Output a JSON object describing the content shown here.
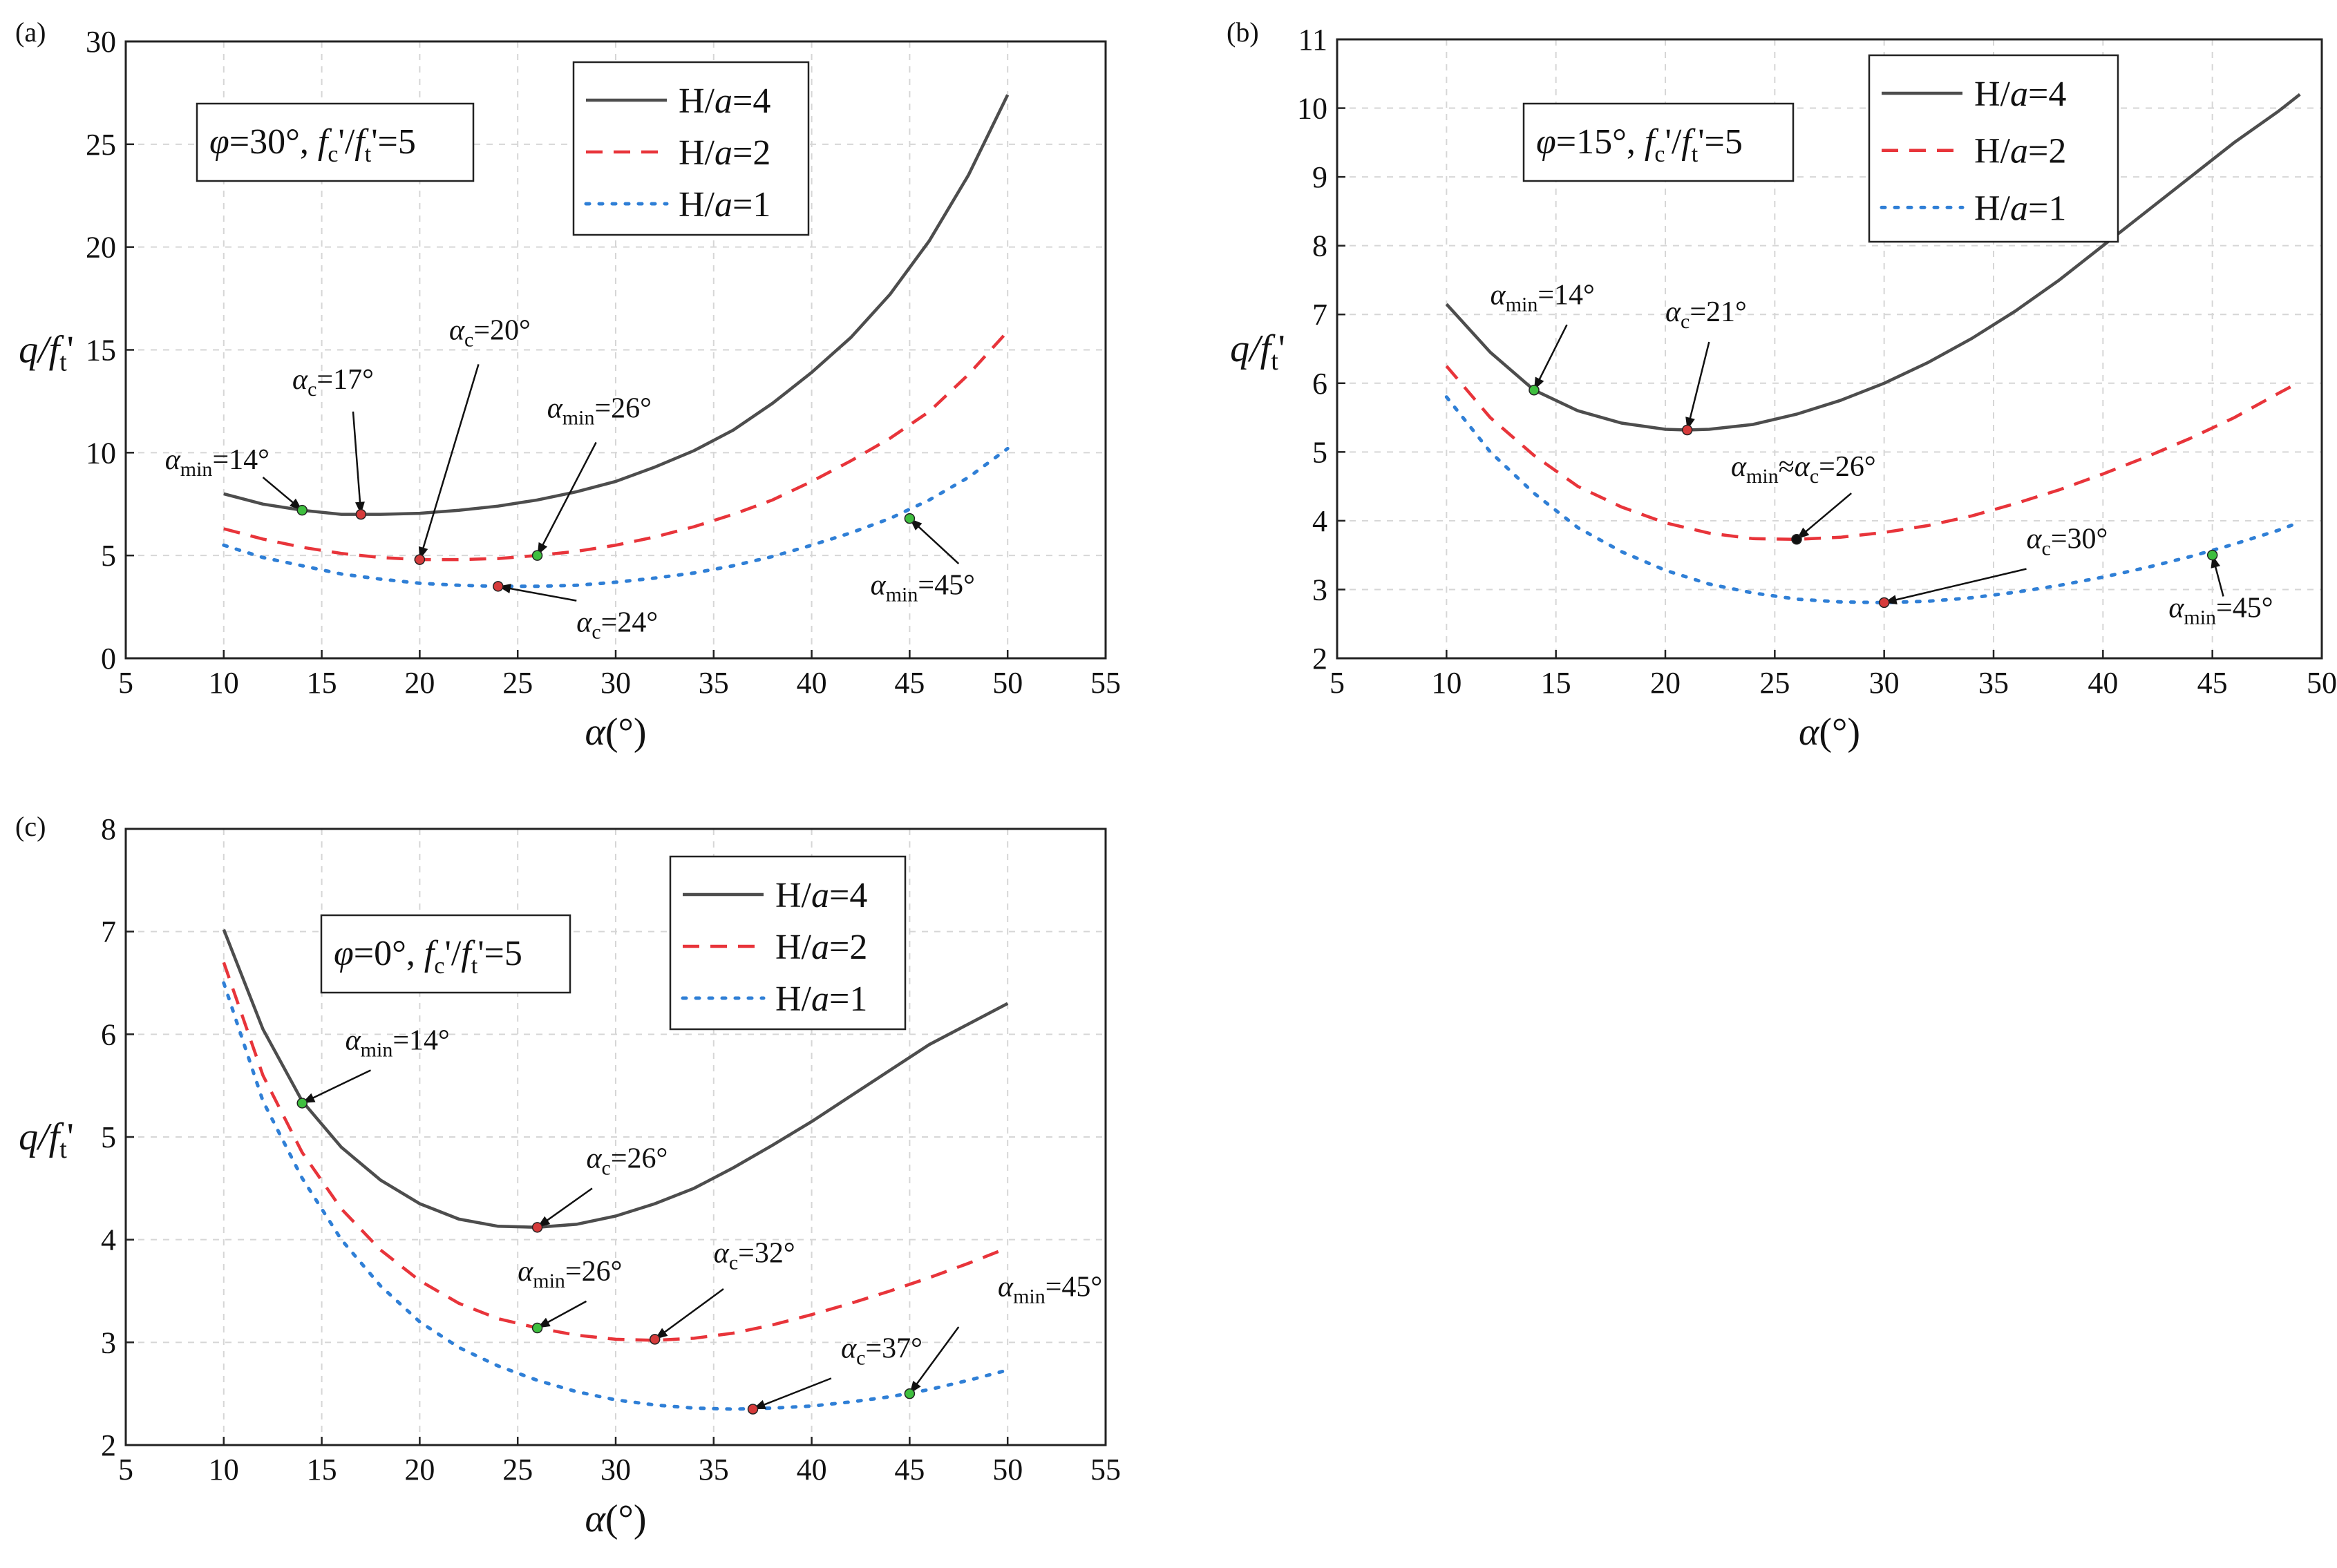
{
  "figure": {
    "colors": {
      "H4": "#4d4d4d",
      "H2": "#e8343a",
      "H1": "#2f7fd6",
      "min_marker": "#3fbf3f",
      "c_marker": "#d63b3b",
      "c_marker_black": "#111111"
    }
  },
  "chart_data": [
    {
      "type": "line",
      "panel_label": "(a)",
      "condition": "φ=30°, fc'/ft'=5",
      "condition_parts": {
        "phi": "φ",
        "phi_val": "=30°, ",
        "fc": "f",
        "fc_sub": "c",
        "fc_prime": "'/",
        "ft": "f",
        "ft_sub": "t",
        "ft_tail": "'=5"
      },
      "xlabel": "α(°)",
      "ylabel": "q/ft'",
      "xlim": [
        5,
        55
      ],
      "ylim": [
        0,
        30
      ],
      "xticks": [
        5,
        10,
        15,
        20,
        25,
        30,
        35,
        40,
        45,
        50,
        55
      ],
      "yticks": [
        0,
        5,
        10,
        15,
        20,
        25,
        30
      ],
      "legend": [
        "H/a=4",
        "H/a=2",
        "H/a=1"
      ],
      "series": [
        {
          "name": "H/a=4",
          "style": "solid",
          "x": [
            10,
            12,
            14,
            16,
            18,
            20,
            22,
            24,
            26,
            28,
            30,
            32,
            34,
            36,
            38,
            40,
            42,
            44,
            46,
            48,
            50
          ],
          "y": [
            8.0,
            7.5,
            7.2,
            7.0,
            7.0,
            7.05,
            7.2,
            7.4,
            7.7,
            8.1,
            8.6,
            9.3,
            10.1,
            11.1,
            12.4,
            13.9,
            15.6,
            17.7,
            20.3,
            23.5,
            27.4
          ]
        },
        {
          "name": "H/a=2",
          "style": "dashed",
          "x": [
            10,
            12,
            14,
            16,
            18,
            20,
            22,
            24,
            26,
            28,
            30,
            32,
            34,
            36,
            38,
            40,
            42,
            44,
            46,
            48,
            50
          ],
          "y": [
            6.3,
            5.8,
            5.4,
            5.1,
            4.9,
            4.8,
            4.8,
            4.85,
            5.0,
            5.2,
            5.5,
            5.9,
            6.4,
            7.0,
            7.7,
            8.6,
            9.6,
            10.7,
            12.0,
            13.8,
            15.9
          ]
        },
        {
          "name": "H/a=1",
          "style": "dotted",
          "x": [
            10,
            12,
            14,
            16,
            18,
            20,
            22,
            24,
            26,
            28,
            30,
            32,
            34,
            36,
            38,
            40,
            42,
            44,
            46,
            48,
            50
          ],
          "y": [
            5.5,
            4.9,
            4.5,
            4.1,
            3.85,
            3.65,
            3.55,
            3.5,
            3.5,
            3.55,
            3.7,
            3.9,
            4.15,
            4.5,
            4.95,
            5.5,
            6.1,
            6.8,
            7.7,
            8.8,
            10.2
          ]
        }
      ],
      "annotations": [
        {
          "sym": "α",
          "sub": "min",
          "rest": "=14°",
          "x": 14,
          "y": 7.2,
          "marker": "min",
          "tx": 7.0,
          "ty": 9.2,
          "ax": 12.0,
          "ay": 8.8
        },
        {
          "sym": "α",
          "sub": "c",
          "rest": "=17°",
          "x": 17,
          "y": 7.0,
          "marker": "c",
          "tx": 13.5,
          "ty": 13.1,
          "ax": 16.6,
          "ay": 12.0
        },
        {
          "sym": "α",
          "sub": "c",
          "rest": "=20°",
          "x": 20,
          "y": 4.8,
          "marker": "c",
          "tx": 21.5,
          "ty": 15.5,
          "ax": 23.0,
          "ay": 14.3
        },
        {
          "sym": "α",
          "sub": "min",
          "rest": "=26°",
          "x": 26,
          "y": 5.0,
          "marker": "min",
          "tx": 26.5,
          "ty": 11.7,
          "ax": 29.0,
          "ay": 10.5
        },
        {
          "sym": "α",
          "sub": "c",
          "rest": "=24°",
          "x": 24,
          "y": 3.5,
          "marker": "c",
          "tx": 28.0,
          "ty": 1.3,
          "ax": 28.0,
          "ay": 2.8
        },
        {
          "sym": "α",
          "sub": "min",
          "rest": "=45°",
          "x": 45,
          "y": 6.8,
          "marker": "min",
          "tx": 43.0,
          "ty": 3.1,
          "ax": 47.5,
          "ay": 4.6
        }
      ]
    },
    {
      "type": "line",
      "panel_label": "(b)",
      "condition": "φ=15°, fc'/ft'=5",
      "condition_parts": {
        "phi": "φ",
        "phi_val": "=15°, ",
        "fc": "f",
        "fc_sub": "c",
        "fc_prime": "'/",
        "ft": "f",
        "ft_sub": "t",
        "ft_tail": "'=5"
      },
      "xlabel": "α(°)",
      "ylabel": "q/ft'",
      "xlim": [
        5,
        50
      ],
      "ylim": [
        2,
        11
      ],
      "xticks": [
        5,
        10,
        15,
        20,
        25,
        30,
        35,
        40,
        45,
        50
      ],
      "yticks": [
        2,
        3,
        4,
        5,
        6,
        7,
        8,
        9,
        10,
        11
      ],
      "legend": [
        "H/a=4",
        "H/a=2",
        "H/a=1"
      ],
      "series": [
        {
          "name": "H/a=4",
          "style": "solid",
          "x": [
            10,
            12,
            14,
            16,
            18,
            20,
            21,
            22,
            24,
            26,
            28,
            30,
            32,
            34,
            36,
            38,
            40,
            42,
            44,
            46,
            48,
            49
          ],
          "y": [
            7.15,
            6.45,
            5.9,
            5.6,
            5.42,
            5.33,
            5.32,
            5.33,
            5.4,
            5.55,
            5.75,
            6.0,
            6.3,
            6.65,
            7.05,
            7.5,
            8.0,
            8.5,
            9.0,
            9.5,
            9.95,
            10.2
          ]
        },
        {
          "name": "H/a=2",
          "style": "dashed",
          "x": [
            10,
            12,
            14,
            16,
            18,
            20,
            22,
            24,
            26,
            28,
            30,
            32,
            34,
            36,
            38,
            40,
            42,
            44,
            46,
            48,
            49
          ],
          "y": [
            6.25,
            5.5,
            4.95,
            4.5,
            4.2,
            3.97,
            3.82,
            3.74,
            3.73,
            3.76,
            3.83,
            3.93,
            4.07,
            4.25,
            4.45,
            4.68,
            4.93,
            5.2,
            5.5,
            5.85,
            6.02
          ]
        },
        {
          "name": "H/a=1",
          "style": "dotted",
          "x": [
            10,
            12,
            14,
            16,
            18,
            20,
            22,
            24,
            26,
            28,
            30,
            32,
            34,
            36,
            38,
            40,
            42,
            44,
            46,
            48,
            49
          ],
          "y": [
            5.8,
            5.0,
            4.4,
            3.9,
            3.55,
            3.28,
            3.08,
            2.95,
            2.86,
            2.82,
            2.81,
            2.83,
            2.88,
            2.96,
            3.06,
            3.18,
            3.32,
            3.48,
            3.66,
            3.86,
            3.98
          ]
        }
      ],
      "annotations": [
        {
          "sym": "α",
          "sub": "min",
          "rest": "=14°",
          "x": 14,
          "y": 5.9,
          "marker": "min",
          "tx": 12.0,
          "ty": 7.15,
          "ax": 15.5,
          "ay": 6.85
        },
        {
          "sym": "α",
          "sub": "c",
          "rest": "=21°",
          "x": 21,
          "y": 5.32,
          "marker": "c",
          "tx": 20.0,
          "ty": 6.9,
          "ax": 22.0,
          "ay": 6.6
        },
        {
          "sym": "α",
          "sub": "min",
          "rest": "≈",
          "rest2": "=26°",
          "sym2": "α",
          "sub2": "c",
          "x": 26,
          "y": 3.73,
          "marker": "c_black",
          "tx": 23.0,
          "ty": 4.65,
          "ax": 28.5,
          "ay": 4.4
        },
        {
          "sym": "α",
          "sub": "c",
          "rest": "=30°",
          "x": 30,
          "y": 2.81,
          "marker": "c",
          "tx": 36.5,
          "ty": 3.6,
          "ax": 36.5,
          "ay": 3.3
        },
        {
          "sym": "α",
          "sub": "min",
          "rest": "=45°",
          "x": 45,
          "y": 3.5,
          "marker": "min",
          "tx": 43.0,
          "ty": 2.6,
          "ax": 45.5,
          "ay": 2.9
        }
      ]
    },
    {
      "type": "line",
      "panel_label": "(c)",
      "condition": "φ=0°, fc'/ft'=5",
      "condition_parts": {
        "phi": "φ",
        "phi_val": "=0°, ",
        "fc": "f",
        "fc_sub": "c",
        "fc_prime": "'/",
        "ft": "f",
        "ft_sub": "t",
        "ft_tail": "'=5"
      },
      "xlabel": "α(°)",
      "ylabel": "q/ft'",
      "xlim": [
        5,
        55
      ],
      "ylim": [
        2,
        8
      ],
      "xticks": [
        5,
        10,
        15,
        20,
        25,
        30,
        35,
        40,
        45,
        50,
        55
      ],
      "yticks": [
        2,
        3,
        4,
        5,
        6,
        7,
        8
      ],
      "legend": [
        "H/a=4",
        "H/a=2",
        "H/a=1"
      ],
      "series": [
        {
          "name": "H/a=4",
          "style": "solid",
          "x": [
            10,
            12,
            14,
            16,
            18,
            20,
            22,
            24,
            26,
            28,
            30,
            32,
            34,
            36,
            38,
            40,
            42,
            44,
            46,
            48,
            50
          ],
          "y": [
            7.02,
            6.05,
            5.35,
            4.9,
            4.58,
            4.35,
            4.2,
            4.13,
            4.12,
            4.15,
            4.23,
            4.35,
            4.5,
            4.7,
            4.92,
            5.15,
            5.4,
            5.65,
            5.9,
            6.1,
            6.3
          ]
        },
        {
          "name": "H/a=2",
          "style": "dashed",
          "x": [
            10,
            12,
            14,
            16,
            18,
            20,
            22,
            24,
            26,
            28,
            30,
            32,
            34,
            36,
            38,
            40,
            42,
            44,
            46,
            48,
            50
          ],
          "y": [
            6.7,
            5.6,
            4.85,
            4.3,
            3.9,
            3.6,
            3.38,
            3.23,
            3.14,
            3.07,
            3.03,
            3.02,
            3.04,
            3.09,
            3.17,
            3.27,
            3.38,
            3.5,
            3.63,
            3.77,
            3.92
          ]
        },
        {
          "name": "H/a=1",
          "style": "dotted",
          "x": [
            10,
            12,
            14,
            16,
            18,
            20,
            22,
            24,
            26,
            28,
            30,
            32,
            34,
            36,
            38,
            40,
            42,
            44,
            46,
            48,
            50
          ],
          "y": [
            6.5,
            5.35,
            4.6,
            4.0,
            3.55,
            3.2,
            2.95,
            2.77,
            2.63,
            2.52,
            2.44,
            2.39,
            2.36,
            2.35,
            2.36,
            2.38,
            2.42,
            2.47,
            2.54,
            2.63,
            2.73
          ]
        }
      ],
      "annotations": [
        {
          "sym": "α",
          "sub": "min",
          "rest": "=14°",
          "x": 14,
          "y": 5.33,
          "marker": "min",
          "tx": 16.2,
          "ty": 5.85,
          "ax": 17.5,
          "ay": 5.65
        },
        {
          "sym": "α",
          "sub": "c",
          "rest": "=26°",
          "x": 26,
          "y": 4.12,
          "marker": "c",
          "tx": 28.5,
          "ty": 4.7,
          "ax": 28.8,
          "ay": 4.5
        },
        {
          "sym": "α",
          "sub": "min",
          "rest": "=26°",
          "x": 26,
          "y": 3.14,
          "marker": "min",
          "tx": 25.0,
          "ty": 3.6,
          "ax": 28.5,
          "ay": 3.4
        },
        {
          "sym": "α",
          "sub": "c",
          "rest": "=32°",
          "x": 32,
          "y": 3.03,
          "marker": "c",
          "tx": 35.0,
          "ty": 3.78,
          "ax": 35.5,
          "ay": 3.52
        },
        {
          "sym": "α",
          "sub": "c",
          "rest": "=37°",
          "x": 37,
          "y": 2.35,
          "marker": "c",
          "tx": 41.5,
          "ty": 2.85,
          "ax": 41.0,
          "ay": 2.65
        },
        {
          "sym": "α",
          "sub": "min",
          "rest": "=45°",
          "x": 45,
          "y": 2.5,
          "marker": "min",
          "tx": 49.5,
          "ty": 3.45,
          "ax": 47.5,
          "ay": 3.15
        }
      ]
    }
  ]
}
